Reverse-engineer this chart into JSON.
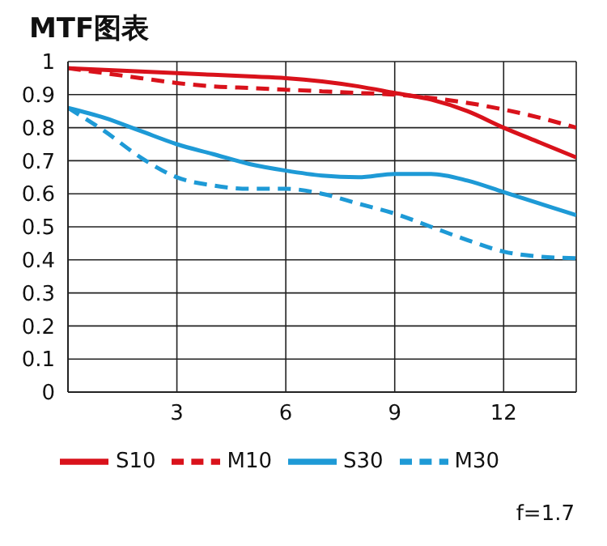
{
  "chart_data": {
    "type": "line",
    "title": "MTF图表",
    "x": [
      0,
      1,
      2,
      3,
      4,
      5,
      6,
      7,
      8,
      9,
      10,
      11,
      12,
      13,
      14
    ],
    "series": [
      {
        "name": "S10",
        "color": "#d9121b",
        "line_style": "solid",
        "values": [
          0.98,
          0.975,
          0.97,
          0.965,
          0.96,
          0.955,
          0.95,
          0.94,
          0.925,
          0.905,
          0.885,
          0.85,
          0.8,
          0.755,
          0.71
        ]
      },
      {
        "name": "M10",
        "color": "#d9121b",
        "line_style": "dashed",
        "values": [
          0.98,
          0.965,
          0.95,
          0.935,
          0.925,
          0.92,
          0.915,
          0.91,
          0.905,
          0.9,
          0.89,
          0.875,
          0.855,
          0.83,
          0.8
        ]
      },
      {
        "name": "S30",
        "color": "#1e9ad6",
        "line_style": "solid",
        "values": [
          0.86,
          0.83,
          0.79,
          0.75,
          0.72,
          0.69,
          0.67,
          0.655,
          0.65,
          0.66,
          0.66,
          0.64,
          0.605,
          0.57,
          0.535
        ]
      },
      {
        "name": "M30",
        "color": "#1e9ad6",
        "line_style": "dashed",
        "values": [
          0.86,
          0.79,
          0.71,
          0.65,
          0.625,
          0.615,
          0.615,
          0.6,
          0.57,
          0.54,
          0.5,
          0.46,
          0.425,
          0.41,
          0.405
        ]
      }
    ],
    "xlim": [
      0,
      14
    ],
    "xticks": [
      3,
      6,
      9,
      12
    ],
    "ylim": [
      0,
      1
    ],
    "yticks": [
      0,
      0.1,
      0.2,
      0.3,
      0.4,
      0.5,
      0.6,
      0.7,
      0.8,
      0.9,
      1
    ],
    "grid": true,
    "legend": "bottom",
    "marker": "none",
    "annotations": [
      "f=1.7"
    ]
  }
}
